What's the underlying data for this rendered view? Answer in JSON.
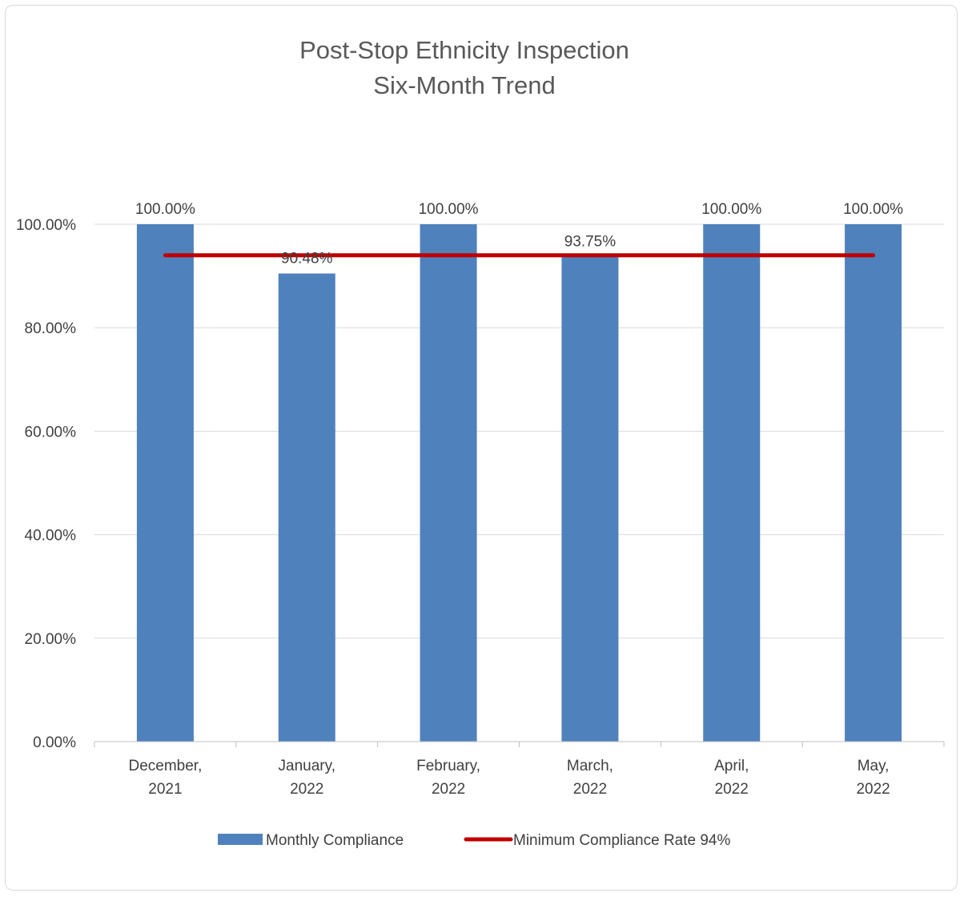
{
  "chart_data": {
    "type": "bar",
    "title": [
      "Post-Stop Ethnicity Inspection",
      "Six-Month Trend"
    ],
    "categories": [
      [
        "December,",
        "2021"
      ],
      [
        "January,",
        "2022"
      ],
      [
        "February,",
        "2022"
      ],
      [
        "March,",
        "2022"
      ],
      [
        "April,",
        "2022"
      ],
      [
        "May,",
        "2022"
      ]
    ],
    "series": [
      {
        "name": "Monthly Compliance",
        "type": "bar",
        "color": "#4f81bd",
        "values": [
          100.0,
          90.48,
          100.0,
          93.75,
          100.0,
          100.0
        ],
        "labels": [
          "100.00%",
          "90.48%",
          "100.00%",
          "93.75%",
          "100.00%",
          "100.00%"
        ]
      },
      {
        "name": "Minimum Compliance Rate 94%",
        "type": "line",
        "color": "#c00000",
        "values": [
          94,
          94,
          94,
          94,
          94,
          94
        ]
      }
    ],
    "ylim": [
      0,
      100
    ],
    "yticks": [
      0,
      20,
      40,
      60,
      80,
      100
    ],
    "ytick_labels": [
      "0.00%",
      "20.00%",
      "40.00%",
      "60.00%",
      "80.00%",
      "100.00%"
    ],
    "xlabel": "",
    "ylabel": "",
    "grid": true,
    "legend_position": "bottom"
  }
}
